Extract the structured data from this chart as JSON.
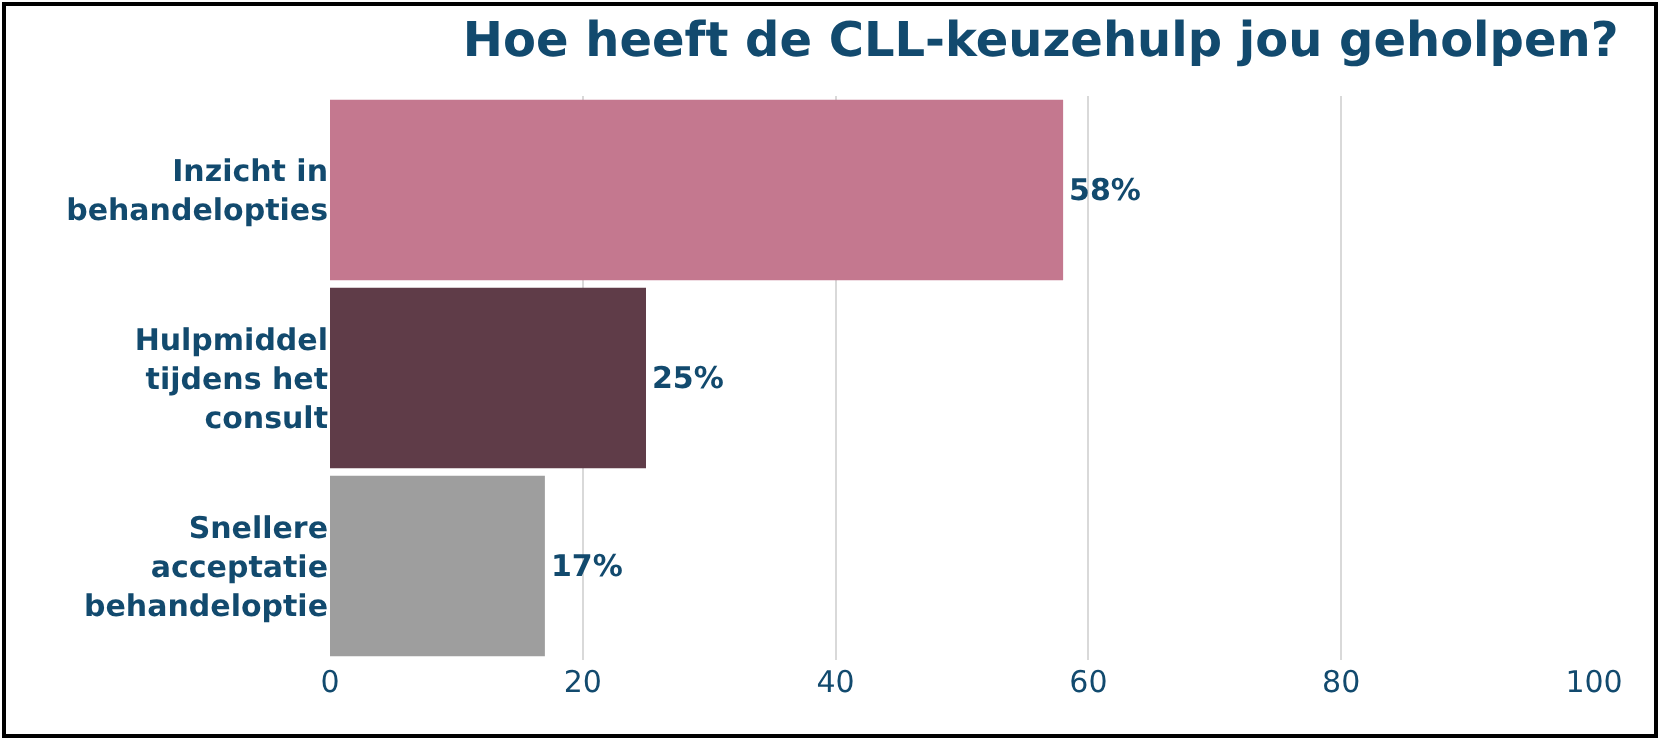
{
  "chart_data": {
    "type": "bar",
    "orientation": "horizontal",
    "title": "Hoe heeft de CLL-keuzehulp jou geholpen?",
    "categories": [
      "Inzicht in behandelopties",
      "Hulpmiddel tijdens het consult",
      "Snellere acceptatie behandeloptie"
    ],
    "values": [
      58,
      25,
      17
    ],
    "colors": [
      "#c4788f",
      "#5f3c48",
      "#9e9e9e"
    ],
    "value_labels": [
      "58%",
      "25%",
      "17%"
    ],
    "xlim": [
      0,
      100
    ],
    "xticks": [
      0,
      20,
      40,
      60,
      80,
      100
    ],
    "grid": "x"
  }
}
